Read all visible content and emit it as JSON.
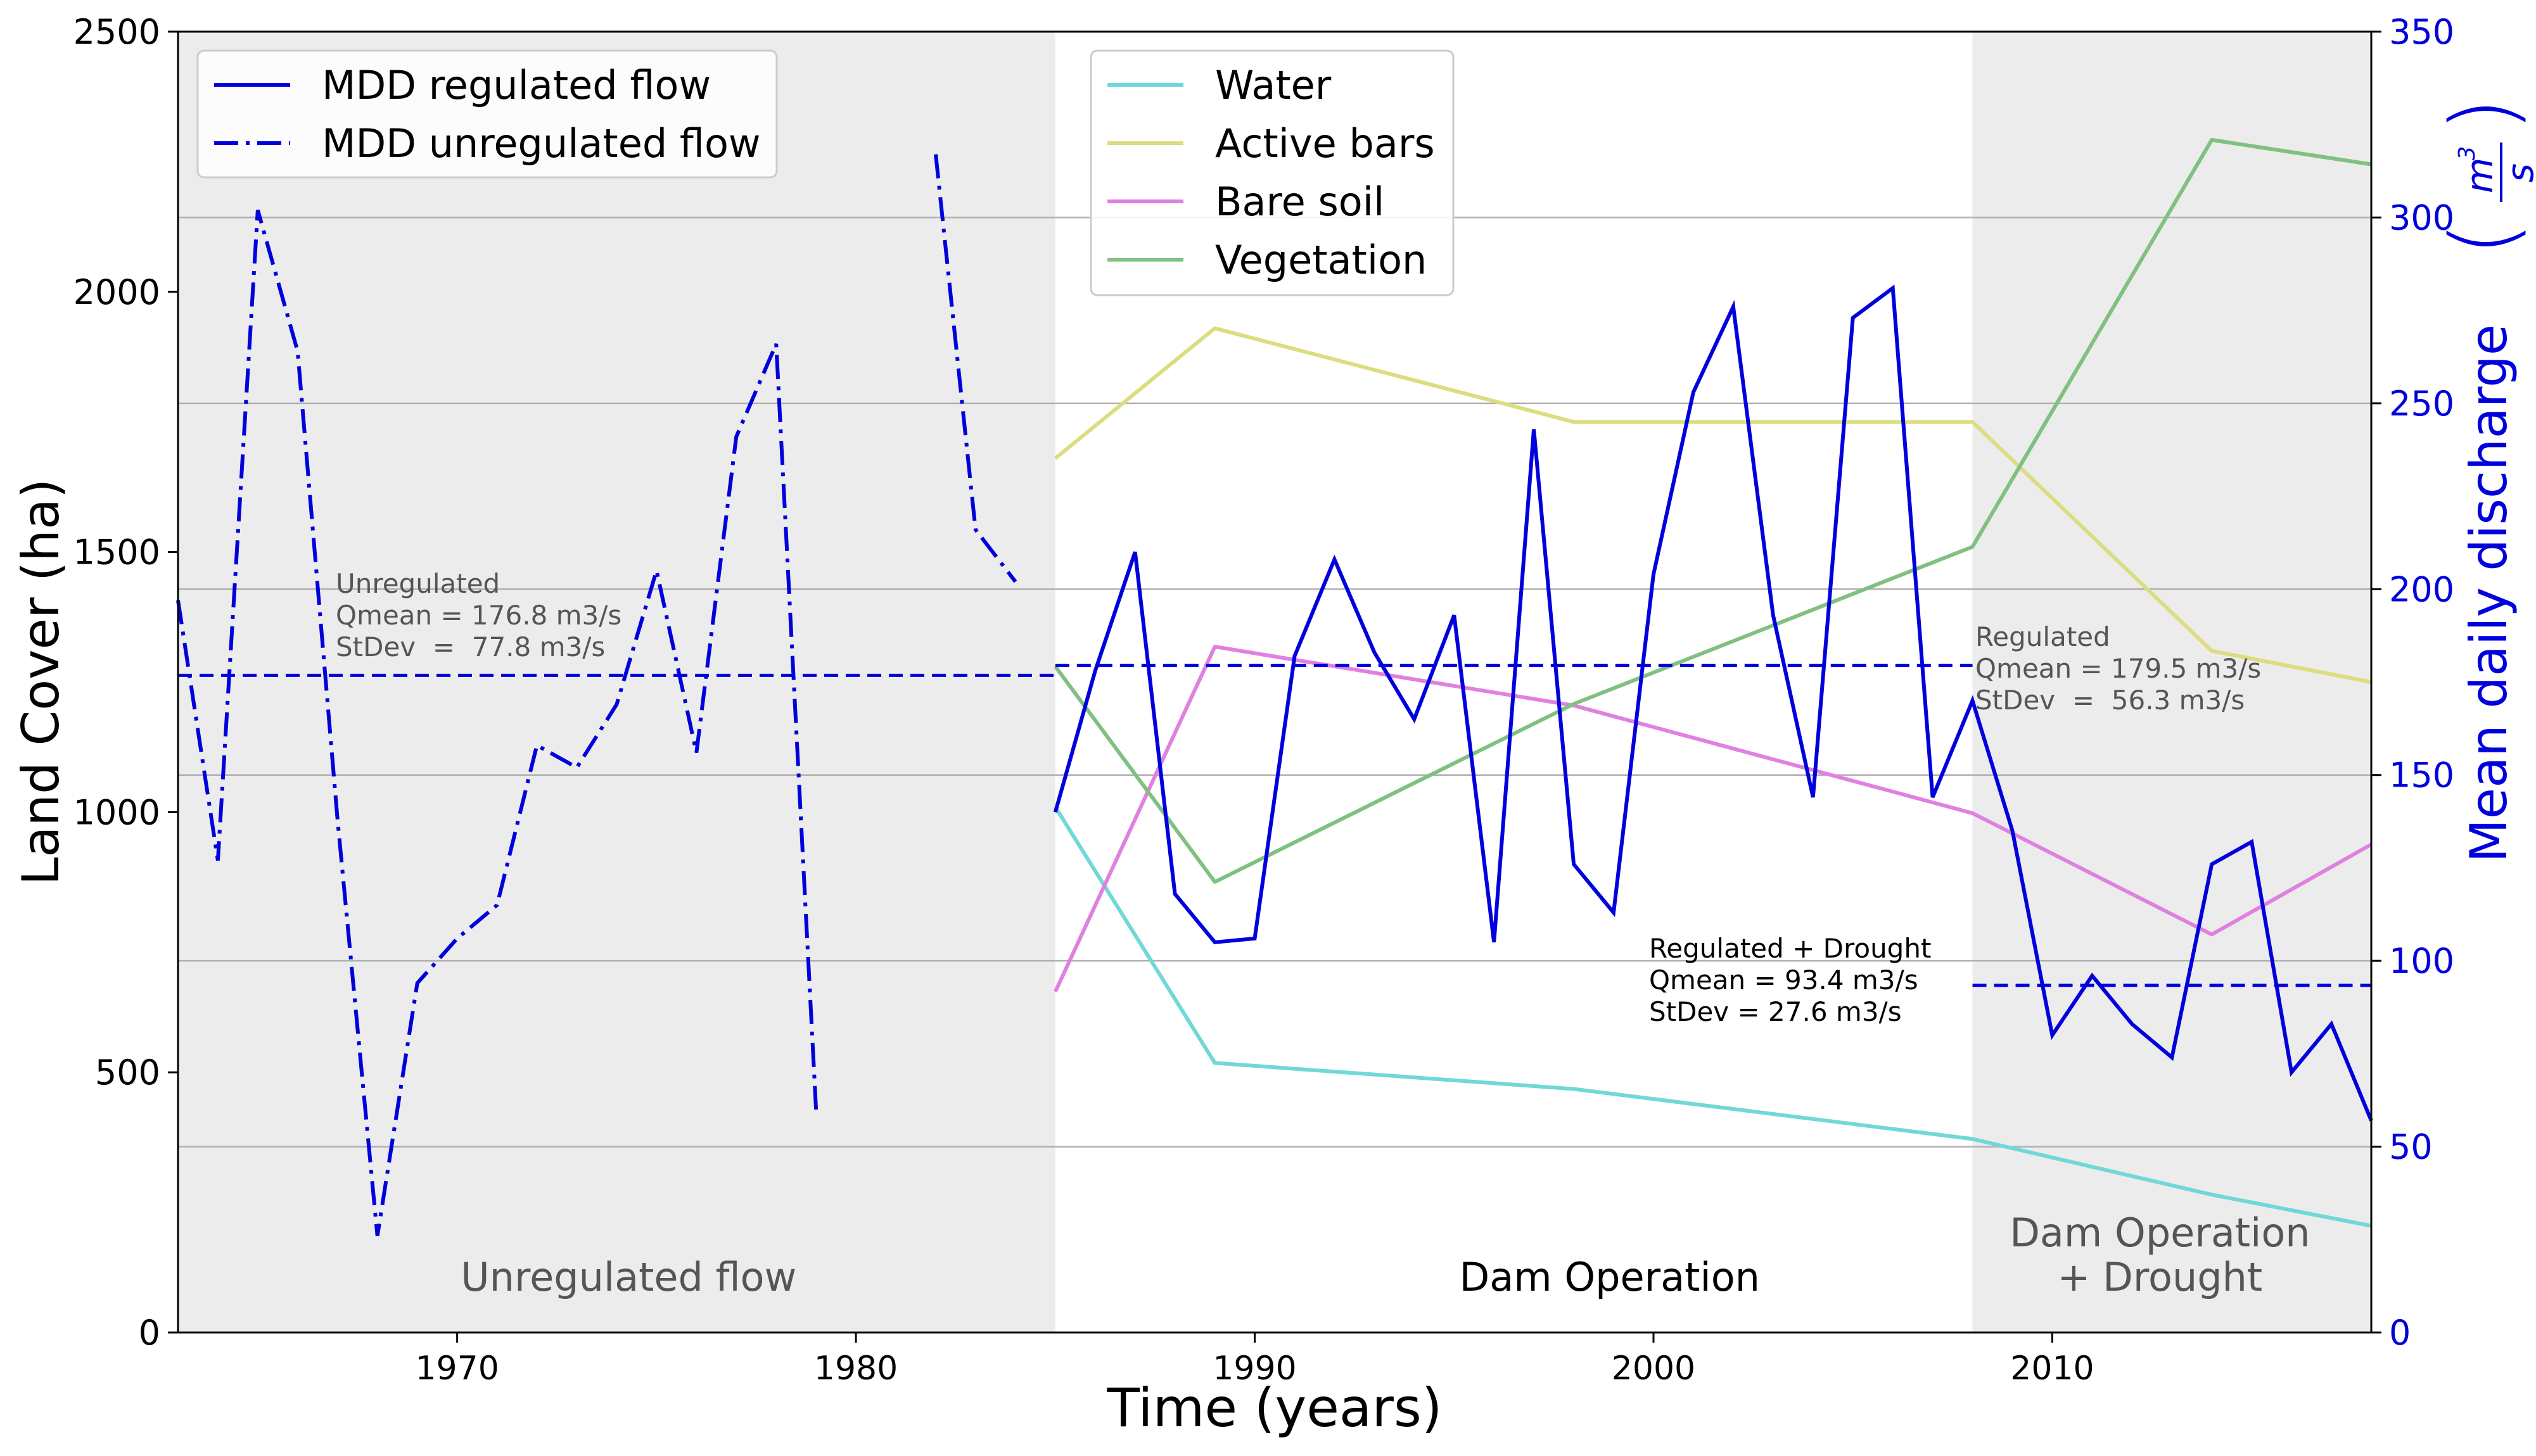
{
  "chart_data": {
    "type": "line",
    "title": "",
    "xlabel": "Time (years)",
    "ylabel_left": "Land Cover (ha)",
    "ylabel_right": "Mean daily discharge",
    "ylabel_right_unit": "m3/s",
    "ylabel_right_num": "m",
    "ylabel_right_exp": "3",
    "ylabel_right_den": "s",
    "xlim": [
      1963,
      2018
    ],
    "ylim_left": [
      0,
      2500
    ],
    "ylim_right": [
      0,
      350
    ],
    "x_ticks": [
      1970,
      1980,
      1990,
      2000,
      2010
    ],
    "y_left_ticks": [
      0,
      500,
      1000,
      1500,
      2000,
      2500
    ],
    "y_right_ticks": [
      0,
      50,
      100,
      150,
      200,
      250,
      300,
      350
    ],
    "grid": "horizontal (right axis)",
    "periods": [
      {
        "label": "Unregulated flow",
        "start": 1963,
        "end": 1985,
        "shaded": true
      },
      {
        "label": "Dam Operation",
        "start": 1985,
        "end": 2008,
        "shaded": false
      },
      {
        "label_lines": [
          "Dam Operation",
          "+ Drought"
        ],
        "start": 2008,
        "end": 2018,
        "shaded": true
      }
    ],
    "discharge_series": [
      {
        "name": "MDD regulated flow",
        "axis": "right",
        "color": "#0000dd",
        "style": "solid",
        "x": [
          1985,
          1986,
          1987,
          1988,
          1989,
          1990,
          1991,
          1992,
          1993,
          1994,
          1995,
          1996,
          1997,
          1998,
          1999,
          2000,
          2001,
          2002,
          2003,
          2004,
          2005,
          2006,
          2007,
          2008,
          2009,
          2010,
          2011,
          2012,
          2013,
          2014,
          2015,
          2016,
          2017,
          2018
        ],
        "values": [
          140,
          178,
          210,
          118,
          105,
          106,
          182,
          208,
          183,
          165,
          193,
          105,
          243,
          126,
          113,
          204,
          253,
          276,
          193,
          144,
          273,
          281,
          144,
          170,
          135,
          80,
          96,
          83,
          74,
          126,
          132,
          70,
          83,
          57
        ]
      },
      {
        "name": "MDD unregulated flow",
        "axis": "right",
        "color": "#0000dd",
        "style": "dashdot",
        "segments": [
          {
            "x": [
              1963,
              1964,
              1965,
              1966,
              1967,
              1968,
              1969,
              1970,
              1971,
              1972,
              1973,
              1974,
              1975,
              1976,
              1977,
              1978,
              1979
            ],
            "values": [
              197,
              127,
              302,
              264,
              138,
              26,
              94,
              106,
              115,
              158,
              152,
              169,
              205,
              156,
              241,
              266,
              60
            ]
          },
          {
            "x": [
              1982,
              1983,
              1984
            ],
            "values": [
              317,
              216,
              202
            ]
          }
        ]
      }
    ],
    "landcover_series": [
      {
        "name": "Water",
        "axis": "left",
        "color": "#70d8d8",
        "x": [
          1985,
          1989,
          1998,
          2008,
          2014,
          2018
        ],
        "values": [
          1010,
          518,
          468,
          372,
          265,
          205
        ]
      },
      {
        "name": "Active bars",
        "axis": "left",
        "color": "#dcdc80",
        "x": [
          1985,
          1989,
          1998,
          2008,
          2014,
          2018
        ],
        "values": [
          1680,
          1930,
          1750,
          1750,
          1310,
          1250
        ]
      },
      {
        "name": "Bare soil",
        "axis": "left",
        "color": "#e080e0",
        "x": [
          1985,
          1989,
          1998,
          2008,
          2014,
          2018
        ],
        "values": [
          655,
          1318,
          1205,
          998,
          765,
          938
        ]
      },
      {
        "name": "Vegetation",
        "axis": "left",
        "color": "#80c080",
        "x": [
          1985,
          1989,
          1998,
          2008,
          2014,
          2018
        ],
        "values": [
          1280,
          866,
          1208,
          1510,
          2292,
          2245
        ]
      }
    ],
    "mean_lines": [
      {
        "name": "Unregulated mean",
        "axis": "right",
        "x": [
          1963,
          1985
        ],
        "value": 176.8
      },
      {
        "name": "Regulated mean",
        "axis": "right",
        "x": [
          1985,
          2008
        ],
        "value": 179.5
      },
      {
        "name": "Regulated + Drought mean",
        "axis": "right",
        "x": [
          2008,
          2018
        ],
        "value": 93.4
      }
    ],
    "annotations": [
      {
        "lines": [
          "Unregulated",
          "Qmean = 176.8 m3/s",
          "StDev  =  77.8 m3/s"
        ],
        "color": "#555555"
      },
      {
        "lines": [
          "Regulated",
          "Qmean = 179.5 m3/s",
          "StDev  =  56.3 m3/s"
        ],
        "color": "#555555"
      },
      {
        "lines": [
          "Regulated + Drought",
          "Qmean = 93.4 m3/s",
          "StDev = 27.6 m3/s"
        ],
        "color": "#000000"
      }
    ],
    "legend_discharge": [
      "MDD regulated flow",
      "MDD unregulated flow"
    ],
    "legend_landcover": [
      "Water",
      "Active bars",
      "Bare soil",
      "Vegetation"
    ]
  }
}
